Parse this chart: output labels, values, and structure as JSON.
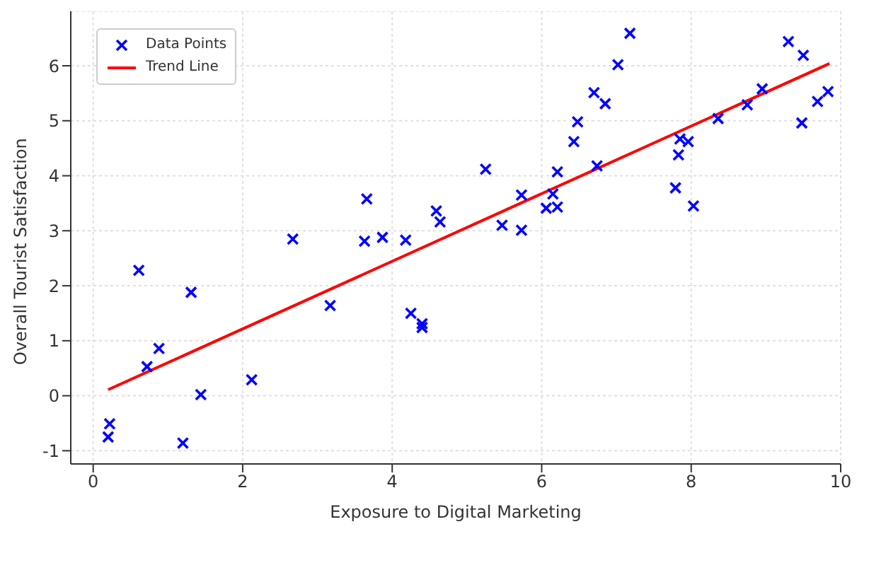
{
  "chart_data": {
    "type": "scatter",
    "xlabel": "Exposure to Digital Marketing",
    "ylabel": "Overall Tourist Satisfaction",
    "xlim": [
      -0.3,
      10
    ],
    "xticks": [
      0,
      2,
      4,
      6,
      8,
      10
    ],
    "ylim": [
      -1.24,
      6.99
    ],
    "yticks": [
      -1,
      0,
      1,
      2,
      3,
      4,
      5,
      6
    ],
    "grid": true,
    "legend": "top left",
    "series": [
      {
        "name": "Data Points",
        "marker": "cross",
        "color": "#0000ff",
        "x": [
          0.22,
          0.2,
          1.2,
          0.61,
          1.31,
          0.88,
          0.72,
          1.44,
          2.12,
          2.67,
          3.17,
          3.63,
          3.66,
          3.87,
          4.18,
          4.25,
          4.4,
          4.4,
          4.59,
          4.64,
          5.25,
          5.47,
          5.73,
          5.73,
          6.06,
          6.21,
          6.15,
          6.21,
          6.43,
          6.48,
          6.7,
          6.85,
          6.74,
          7.02,
          7.18,
          7.79,
          7.83,
          7.85,
          7.96,
          8.03,
          8.36,
          8.75,
          8.95,
          9.3,
          9.5,
          9.48,
          9.69,
          9.83
        ],
        "values": [
          -0.51,
          -0.75,
          -0.86,
          2.28,
          1.88,
          0.86,
          0.53,
          0.02,
          0.29,
          2.85,
          1.64,
          2.81,
          3.58,
          2.88,
          2.83,
          1.5,
          1.31,
          1.24,
          3.36,
          3.16,
          4.12,
          3.1,
          3.65,
          3.01,
          3.41,
          3.43,
          3.67,
          4.07,
          4.62,
          4.98,
          5.51,
          5.31,
          4.18,
          6.02,
          6.59,
          3.78,
          4.38,
          4.67,
          4.62,
          3.45,
          5.04,
          5.29,
          5.58,
          6.44,
          6.19,
          4.96,
          5.35,
          5.53
        ]
      },
      {
        "name": "Trend Line",
        "type": "line",
        "marker": "none",
        "color": "#ff0000",
        "line_style": "solid",
        "x": [
          0.2,
          9.85
        ],
        "values": [
          0.11,
          6.04
        ]
      }
    ]
  }
}
